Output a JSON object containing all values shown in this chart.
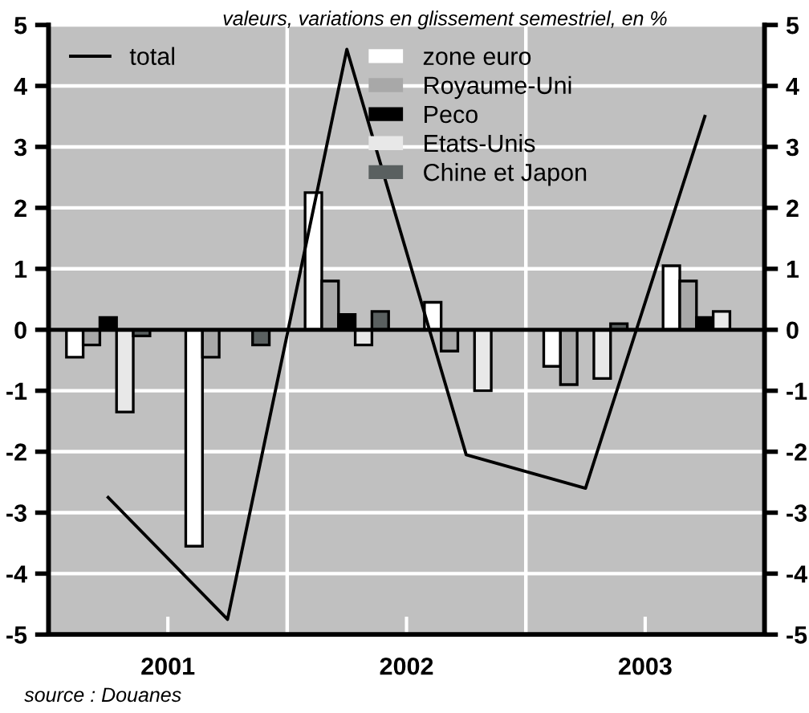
{
  "chart_data": {
    "type": "bar",
    "subtitle": "valeurs, variations en glissement semestriel, en %",
    "x": [
      2001.25,
      2001.75,
      2002.25,
      2002.75,
      2003.25,
      2003.75
    ],
    "xlim": [
      2001,
      2004
    ],
    "xticks": [
      {
        "value": 2001.5,
        "label": "2001"
      },
      {
        "value": 2002.5,
        "label": "2002"
      },
      {
        "value": 2003.5,
        "label": "2003"
      }
    ],
    "ref_lines": [
      {
        "axis": "x",
        "value": 2002,
        "color": "#ffffff"
      },
      {
        "axis": "x",
        "value": 2003,
        "color": "#ffffff"
      }
    ],
    "ylim": [
      -5,
      5
    ],
    "yticks": [
      -5,
      -4,
      -3,
      -2,
      -1,
      0,
      1,
      2,
      3,
      4,
      5
    ],
    "y2lim": [
      -5,
      5
    ],
    "y2ticks": [
      -5,
      -4,
      -3,
      -2,
      -1,
      0,
      1,
      2,
      3,
      4,
      5
    ],
    "series": [
      {
        "name": "zone euro",
        "color": "#ffffff",
        "values": [
          -0.45,
          -3.55,
          2.25,
          0.45,
          -0.6,
          1.05
        ]
      },
      {
        "name": "Royaume-Uni",
        "color": "#a8a8a8",
        "values": [
          -0.25,
          -0.45,
          0.8,
          -0.35,
          -0.9,
          0.8
        ]
      },
      {
        "name": "Peco",
        "color": "#000000",
        "values": [
          0.2,
          null,
          0.25,
          null,
          null,
          0.2
        ]
      },
      {
        "name": "Etats-Unis",
        "color": "#e8e8e8",
        "values": [
          -1.35,
          null,
          -0.25,
          -1.0,
          -0.8,
          0.3
        ]
      },
      {
        "name": "Chine et Japon",
        "color": "#5a6060",
        "values": [
          -0.1,
          -0.25,
          0.3,
          null,
          0.1,
          null
        ]
      },
      {
        "name": "total",
        "type": "line",
        "color": "#000000",
        "values": [
          -2.75,
          -4.75,
          4.6,
          -2.05,
          -2.6,
          3.5
        ]
      }
    ],
    "grid": "y",
    "legend": "top",
    "annotations": [
      "source : Douanes"
    ]
  }
}
